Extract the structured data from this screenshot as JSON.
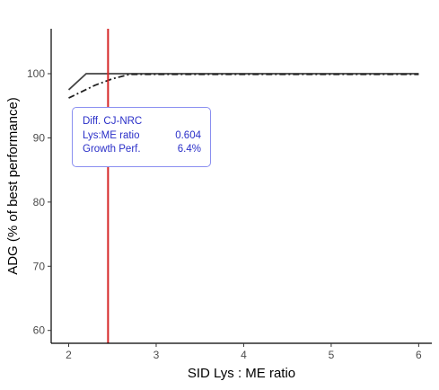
{
  "chart_data": {
    "type": "line",
    "xlabel": "SID Lys : ME ratio",
    "ylabel": "ADG (% of best performance)",
    "xlim": [
      1.8,
      6.15
    ],
    "ylim": [
      58,
      107
    ],
    "x_ticks": [
      2,
      3,
      4,
      5,
      6
    ],
    "y_ticks": [
      60,
      70,
      80,
      90,
      100
    ],
    "grid": false,
    "series": [
      {
        "line_style": "solid",
        "color": "#444444",
        "x": [
          2.0,
          2.2,
          6.0
        ],
        "y": [
          97.5,
          100,
          100
        ]
      },
      {
        "line_style": "dashdot",
        "color": "#222222",
        "x": [
          2.0,
          2.3,
          2.5,
          2.7,
          6.0
        ],
        "y": [
          96.2,
          98.2,
          99.2,
          99.9,
          99.9
        ]
      }
    ],
    "vline": {
      "x": 2.45,
      "color": "#d62728"
    },
    "annotation": {
      "title": "Diff. CJ-NRC",
      "rows": [
        {
          "label": "Lys:ME ratio",
          "value": "0.604"
        },
        {
          "label": "Growth Perf.",
          "value": "6.4%"
        }
      ],
      "color": "#2a2fc8"
    }
  }
}
